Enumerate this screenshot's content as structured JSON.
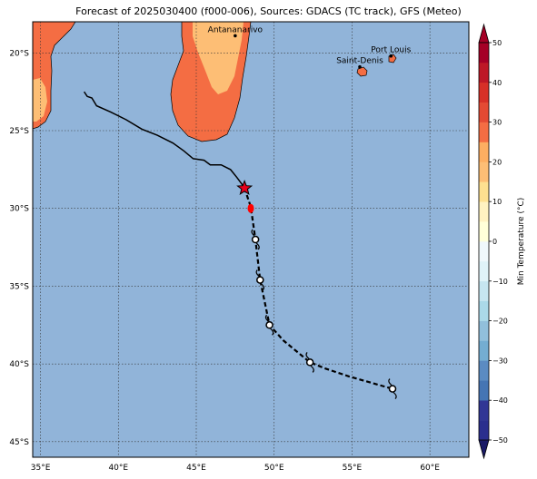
{
  "title": "Forecast of 2025030400 (f000-006), Sources: GDACS (TC track), GFS (Meteo)",
  "map": {
    "lon_range": [
      34.5,
      62.5
    ],
    "lat_range": [
      -46.0,
      -18.0
    ],
    "lon_ticks": [
      35,
      40,
      45,
      50,
      55,
      60
    ],
    "lon_labels": [
      "35°E",
      "40°E",
      "45°E",
      "50°E",
      "55°E",
      "60°E"
    ],
    "lat_ticks": [
      -20,
      -25,
      -30,
      -35,
      -40,
      -45
    ],
    "lat_labels": [
      "20°S",
      "25°S",
      "30°S",
      "35°S",
      "40°S",
      "45°S"
    ],
    "ocean_color": "#91b4d9",
    "gridlines": true
  },
  "cities": [
    {
      "name": "Antananarivo",
      "lon": 47.5,
      "lat": -18.9
    },
    {
      "name": "Port Louis",
      "lon": 57.5,
      "lat": -20.2
    },
    {
      "name": "Saint-Denis",
      "lon": 55.5,
      "lat": -20.9
    }
  ],
  "track": {
    "past": [
      [
        37.8,
        -22.5
      ],
      [
        38.0,
        -22.8
      ],
      [
        38.3,
        -22.9
      ],
      [
        38.6,
        -23.4
      ],
      [
        39.5,
        -23.8
      ],
      [
        40.5,
        -24.3
      ],
      [
        41.5,
        -24.9
      ],
      [
        42.5,
        -25.3
      ],
      [
        43.5,
        -25.8
      ],
      [
        44.2,
        -26.3
      ],
      [
        44.8,
        -26.8
      ],
      [
        45.5,
        -26.9
      ],
      [
        45.9,
        -27.2
      ],
      [
        46.6,
        -27.2
      ],
      [
        47.2,
        -27.5
      ],
      [
        47.6,
        -28.0
      ],
      [
        47.9,
        -28.4
      ],
      [
        48.1,
        -28.7
      ]
    ],
    "forecast": [
      [
        48.1,
        -28.7
      ],
      [
        48.5,
        -29.9
      ],
      [
        48.8,
        -32.0
      ],
      [
        49.1,
        -34.6
      ],
      [
        49.7,
        -37.5
      ],
      [
        50.6,
        -38.5
      ],
      [
        52.3,
        -39.9
      ],
      [
        53.3,
        -40.3
      ],
      [
        54.8,
        -40.8
      ],
      [
        57.6,
        -41.6
      ]
    ],
    "current": [
      48.1,
      -28.7
    ],
    "cyclone_symbols": [
      [
        48.8,
        -32.0
      ],
      [
        49.1,
        -34.6
      ],
      [
        49.7,
        -37.5
      ],
      [
        52.3,
        -39.9
      ],
      [
        57.6,
        -41.6
      ]
    ],
    "red_point": [
      48.5,
      -30.0
    ]
  },
  "colorbar": {
    "label": "Min Temperature (°C)",
    "ticks": [
      50,
      40,
      30,
      20,
      10,
      0,
      -10,
      -20,
      -30,
      -40,
      -50
    ],
    "tick_labels": [
      "50",
      "40",
      "30",
      "20",
      "10",
      "0",
      "−10",
      "−20",
      "−30",
      "−40",
      "−50"
    ],
    "levels": [
      -50,
      -45,
      -40,
      -35,
      -30,
      -25,
      -20,
      -15,
      -10,
      -5,
      0,
      5,
      10,
      15,
      20,
      25,
      30,
      35,
      40,
      45,
      50
    ],
    "colors": [
      "#2b2f8e",
      "#313695",
      "#4575b4",
      "#5b8bc2",
      "#74add1",
      "#91bfdb",
      "#abd9e9",
      "#c6e5f0",
      "#e0f3f8",
      "#f0f8fb",
      "#ffffd9",
      "#fff2c1",
      "#fee090",
      "#fdbe75",
      "#fdae61",
      "#f46d43",
      "#e44a33",
      "#d73027",
      "#be1826",
      "#a50026"
    ],
    "under_color": "#1a1a66",
    "over_color": "#a50026"
  },
  "land_colors": {
    "hot": "#f46d43",
    "warm": "#fdbe75"
  }
}
